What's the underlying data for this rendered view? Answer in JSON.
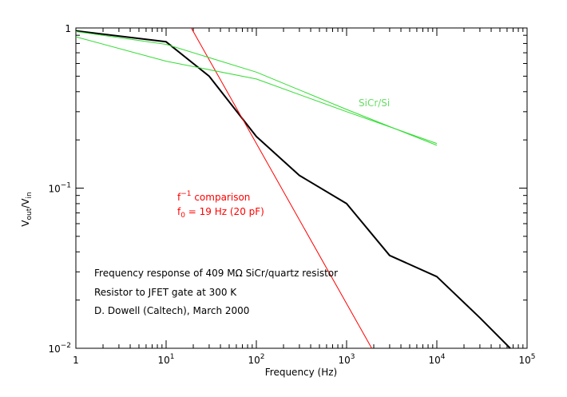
{
  "chart_data": {
    "type": "line",
    "x_scale": "log",
    "y_scale": "log",
    "xlim": [
      1,
      100000
    ],
    "ylim": [
      0.01,
      1
    ],
    "xlabel": "Frequency (Hz)",
    "ylabel": {
      "base": "V",
      "sub1": "out",
      "sep": "/V",
      "sub2": "in"
    },
    "x_ticks": [
      {
        "value": 1,
        "base": "1",
        "exp": ""
      },
      {
        "value": 10,
        "base": "10",
        "exp": "1"
      },
      {
        "value": 100,
        "base": "10",
        "exp": "2"
      },
      {
        "value": 1000,
        "base": "10",
        "exp": "3"
      },
      {
        "value": 10000,
        "base": "10",
        "exp": "4"
      },
      {
        "value": 100000,
        "base": "10",
        "exp": "5"
      }
    ],
    "y_ticks": [
      {
        "value": 0.01,
        "base": "10",
        "exp": "−2"
      },
      {
        "value": 0.1,
        "base": "10",
        "exp": "−1"
      },
      {
        "value": 1,
        "base": "1",
        "exp": ""
      }
    ],
    "grid": false,
    "series": [
      {
        "id": "measured",
        "color": "#000000",
        "width": 2,
        "x": [
          1,
          10,
          30,
          100,
          300,
          1000,
          3000,
          10000,
          30000,
          65000
        ],
        "y": [
          0.96,
          0.82,
          0.5,
          0.21,
          0.12,
          0.08,
          0.038,
          0.028,
          0.0155,
          0.01
        ]
      },
      {
        "id": "f-inverse",
        "color": "#ff0000",
        "width": 1,
        "x": [
          19,
          1900
        ],
        "y": [
          1,
          0.01
        ]
      },
      {
        "id": "sicr-upper",
        "color": "#33dd33",
        "width": 1,
        "x": [
          1,
          10,
          100,
          1000,
          10000
        ],
        "y": [
          0.95,
          0.79,
          0.53,
          0.31,
          0.185
        ]
      },
      {
        "id": "sicr-lower",
        "color": "#33dd33",
        "width": 1,
        "x": [
          1,
          10,
          100,
          1000,
          10000
        ],
        "y": [
          0.88,
          0.62,
          0.48,
          0.3,
          0.19
        ]
      }
    ],
    "annotations": {
      "series_label": {
        "text": "SiCr/Si",
        "color": "#66dd66"
      },
      "red_line1": {
        "prefix": "f",
        "exp": "−1",
        "suffix": " comparison",
        "color": "#ff0000"
      },
      "red_line2": {
        "prefix": "f",
        "sub": "0",
        "suffix": " = 19 Hz (20 pF)",
        "color": "#ff0000"
      },
      "notes": [
        "Frequency response of 409 MΩ SiCr/quartz resistor",
        "Resistor to JFET gate at 300 K",
        "D. Dowell (Caltech), March 2000"
      ]
    }
  }
}
